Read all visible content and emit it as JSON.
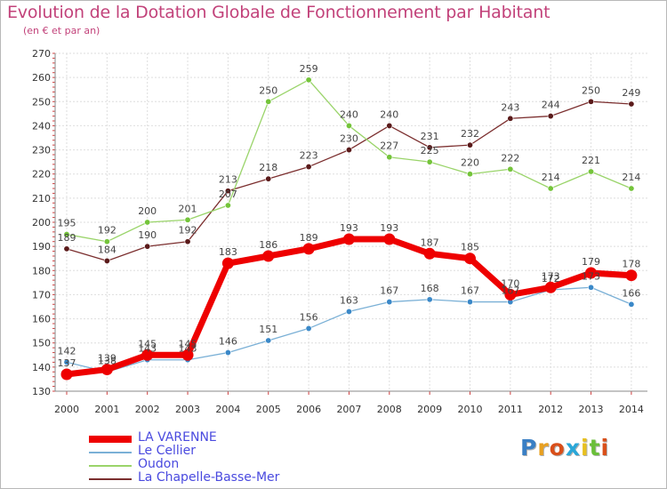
{
  "title": "Evolution de la Dotation Globale de Fonctionnement par Habitant",
  "subtitle": "(en € et par an)",
  "logo": {
    "text": "Proxiti",
    "letter_colors": [
      "#3a7fc4",
      "#e8a020",
      "#d94f1a",
      "#2aa7d8",
      "#e8c020",
      "#6abf3a",
      "#d94f1a"
    ]
  },
  "chart_data": {
    "type": "line",
    "title": "Evolution de la Dotation Globale de Fonctionnement par Habitant",
    "ylabel": "(en € et par an)",
    "xlabel": "",
    "x": [
      "2000",
      "2001",
      "2002",
      "2003",
      "2004",
      "2005",
      "2006",
      "2007",
      "2008",
      "2009",
      "2010",
      "2011",
      "2012",
      "2013",
      "2014"
    ],
    "ylim": [
      130,
      270
    ],
    "yticks": [
      130,
      140,
      150,
      160,
      170,
      180,
      190,
      200,
      210,
      220,
      230,
      240,
      250,
      260,
      270
    ],
    "grid": true,
    "legend_position": "bottom-left",
    "series": [
      {
        "name": "La Chapelle-Basse-Mer",
        "color": "#7b2e2e",
        "dot": "#5a1a1a",
        "values": [
          189,
          184,
          190,
          192,
          213,
          218,
          223,
          230,
          240,
          231,
          232,
          243,
          244,
          250,
          249
        ]
      },
      {
        "name": "Oudon",
        "color": "#9ad46a",
        "dot": "#74c43a",
        "values": [
          195,
          192,
          200,
          201,
          207,
          250,
          259,
          240,
          227,
          225,
          220,
          222,
          214,
          221,
          214
        ]
      },
      {
        "name": "Le Cellier",
        "color": "#7ab0d6",
        "dot": "#3a88c8",
        "values": [
          142,
          138,
          143,
          143,
          146,
          151,
          156,
          163,
          167,
          168,
          167,
          167,
          172,
          173,
          166
        ]
      },
      {
        "name": "LA VARENNE",
        "color": "#ee0000",
        "dot": "#ee0000",
        "values": [
          137,
          139,
          145,
          145,
          183,
          186,
          189,
          193,
          193,
          187,
          185,
          170,
          173,
          179,
          178
        ]
      }
    ],
    "data_labels": {
      "La Chapelle-Basse-Mer": [
        "189",
        "184",
        "190",
        "192",
        "213",
        "218",
        "223",
        "230",
        "240",
        "231",
        "232",
        "243",
        "244",
        "250",
        "249"
      ],
      "Oudon": [
        "195",
        "192",
        "200",
        "201",
        "207",
        "250",
        "259",
        "240",
        "227",
        "225",
        "220",
        "222",
        "214",
        "221",
        "214"
      ],
      "Le Cellier": [
        "142",
        "138",
        "143",
        "143",
        "146",
        "151",
        "156",
        "163",
        "167",
        "168",
        "167",
        "167",
        "172",
        "173",
        "166"
      ],
      "LA VARENNE": [
        "137",
        "139",
        "145",
        "145",
        "183",
        "186",
        "189",
        "193",
        "193",
        "187",
        "185",
        "170",
        "173",
        "179",
        "178"
      ]
    },
    "legend_order": [
      "LA VARENNE",
      "Le Cellier",
      "Oudon",
      "La Chapelle-Basse-Mer"
    ]
  }
}
